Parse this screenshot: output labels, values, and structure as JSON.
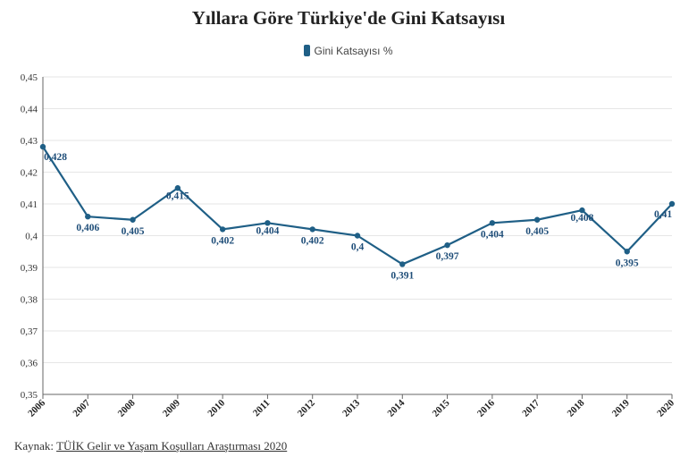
{
  "colors": {
    "line": "#1f5f86",
    "grid": "#e6e6e6",
    "axis": "#666666",
    "label": "#1f4e79"
  },
  "source": {
    "prefix": "Kaynak:",
    "link_text": "TÜİK Gelir ve Yaşam Koşulları Araştırması 2020"
  },
  "chart_data": {
    "type": "line",
    "title": "Yıllara Göre Türkiye'de Gini Katsayısı",
    "xlabel": "",
    "ylabel": "",
    "legend_position": "top-center",
    "grid": true,
    "ylim": [
      0.35,
      0.45
    ],
    "yticks": [
      "0,35",
      "0,36",
      "0,37",
      "0,38",
      "0,39",
      "0,4",
      "0,41",
      "0,42",
      "0,43",
      "0,44",
      "0,45"
    ],
    "x": [
      "2006",
      "2007",
      "2008",
      "2009",
      "2010",
      "2011",
      "2012",
      "2013",
      "2014",
      "2015",
      "2016",
      "2017",
      "2018",
      "2019",
      "2020"
    ],
    "series": [
      {
        "name": "Gini Katsayısı %",
        "values": [
          0.428,
          0.406,
          0.405,
          0.415,
          0.402,
          0.404,
          0.402,
          0.4,
          0.391,
          0.397,
          0.404,
          0.405,
          0.408,
          0.395,
          0.41
        ],
        "data_labels": [
          "0,428",
          "0,406",
          "0,405",
          "0,415",
          "0,402",
          "0,404",
          "0,402",
          "0,4",
          "0,391",
          "0,397",
          "0,404",
          "0,405",
          "0,408",
          "0,395",
          "0,41"
        ]
      }
    ]
  }
}
